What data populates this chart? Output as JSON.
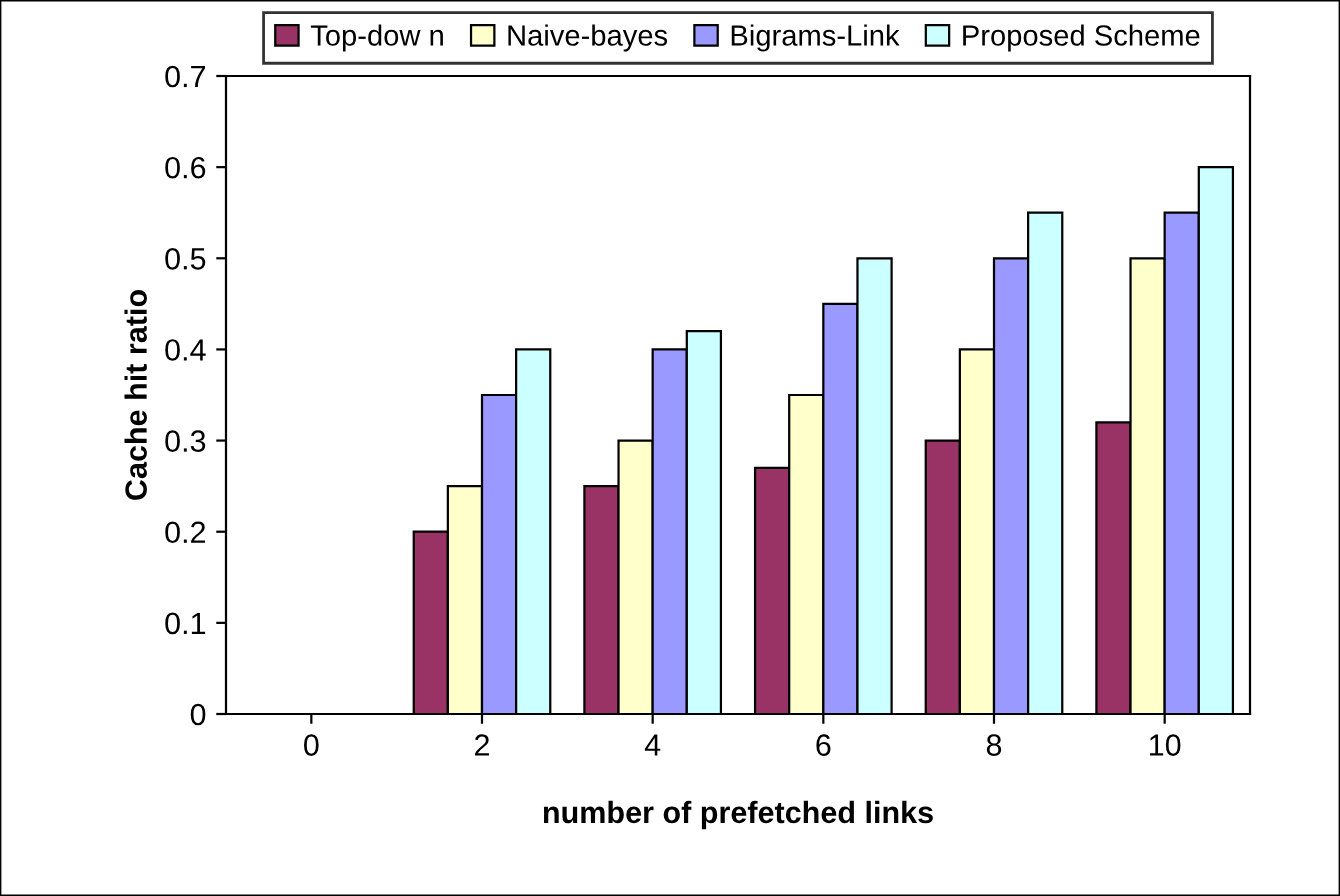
{
  "chart_data": {
    "type": "bar",
    "xlabel": "number of prefetched links",
    "ylabel": "Cache hit ratio",
    "categories": [
      "0",
      "2",
      "4",
      "6",
      "8",
      "10"
    ],
    "series": [
      {
        "name": "Top-dow n",
        "color": "#993366",
        "values": [
          null,
          0.2,
          0.25,
          0.27,
          0.3,
          0.32
        ]
      },
      {
        "name": "Naive-bayes",
        "color": "#ffffcc",
        "values": [
          null,
          0.25,
          0.3,
          0.35,
          0.4,
          0.5
        ]
      },
      {
        "name": "Bigrams-Link",
        "color": "#9999ff",
        "values": [
          null,
          0.35,
          0.4,
          0.45,
          0.5,
          0.55
        ]
      },
      {
        "name": "Proposed Scheme",
        "color": "#ccffff",
        "values": [
          null,
          0.4,
          0.42,
          0.5,
          0.55,
          0.6
        ]
      }
    ],
    "ylim": [
      0,
      0.7
    ],
    "yticks": [
      0,
      0.1,
      0.2,
      0.3,
      0.4,
      0.5,
      0.6,
      0.7
    ],
    "grid": false,
    "legend": "top"
  }
}
